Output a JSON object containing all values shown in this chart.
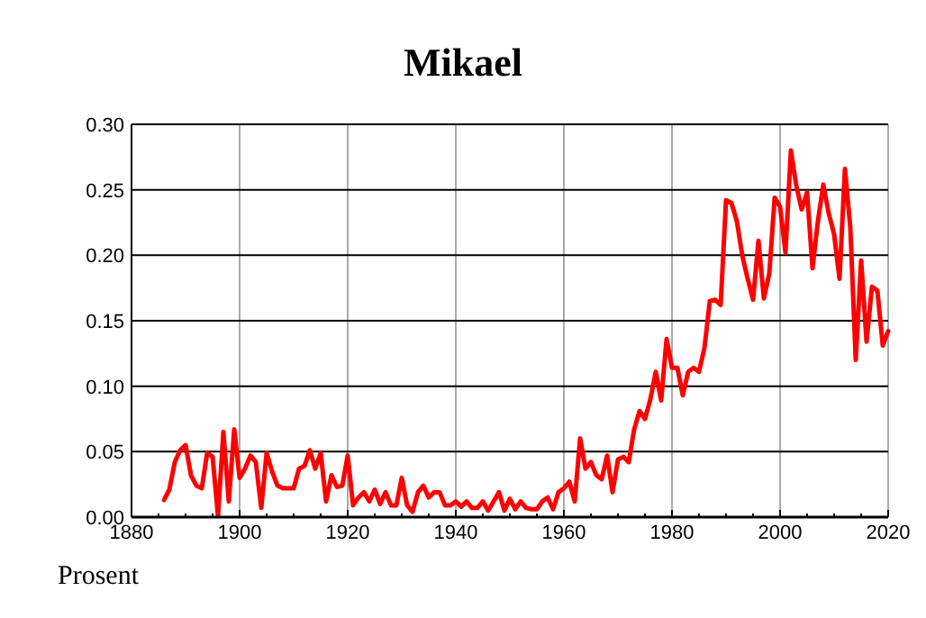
{
  "chart_data": {
    "type": "line",
    "title": "Mikael",
    "annotations": [
      "Prosent"
    ],
    "x": [
      1886,
      1887,
      1888,
      1889,
      1890,
      1891,
      1892,
      1893,
      1894,
      1895,
      1896,
      1897,
      1898,
      1899,
      1900,
      1901,
      1902,
      1903,
      1904,
      1905,
      1906,
      1907,
      1908,
      1909,
      1910,
      1911,
      1912,
      1913,
      1914,
      1915,
      1916,
      1917,
      1918,
      1919,
      1920,
      1921,
      1922,
      1923,
      1924,
      1925,
      1926,
      1927,
      1928,
      1929,
      1930,
      1931,
      1932,
      1933,
      1934,
      1935,
      1936,
      1937,
      1938,
      1939,
      1940,
      1941,
      1942,
      1943,
      1944,
      1945,
      1946,
      1947,
      1948,
      1949,
      1950,
      1951,
      1952,
      1953,
      1954,
      1955,
      1956,
      1957,
      1958,
      1959,
      1960,
      1961,
      1962,
      1963,
      1964,
      1965,
      1966,
      1967,
      1968,
      1969,
      1970,
      1971,
      1972,
      1973,
      1974,
      1975,
      1976,
      1977,
      1978,
      1979,
      1980,
      1981,
      1982,
      1983,
      1984,
      1985,
      1986,
      1987,
      1988,
      1989,
      1990,
      1991,
      1992,
      1993,
      1994,
      1995,
      1996,
      1997,
      1998,
      1999,
      2000,
      2001,
      2002,
      2003,
      2004,
      2005,
      2006,
      2007,
      2008,
      2009,
      2010,
      2011,
      2012,
      2013,
      2014,
      2015,
      2016,
      2017,
      2018,
      2019,
      2020
    ],
    "series": [
      {
        "color": "#ff0000",
        "values": [
          0.013,
          0.021,
          0.042,
          0.051,
          0.055,
          0.032,
          0.024,
          0.022,
          0.049,
          0.046,
          0.001,
          0.065,
          0.012,
          0.067,
          0.03,
          0.037,
          0.047,
          0.042,
          0.007,
          0.049,
          0.035,
          0.024,
          0.022,
          0.022,
          0.022,
          0.037,
          0.039,
          0.051,
          0.037,
          0.049,
          0.012,
          0.032,
          0.023,
          0.024,
          0.047,
          0.009,
          0.015,
          0.019,
          0.012,
          0.021,
          0.01,
          0.019,
          0.009,
          0.009,
          0.03,
          0.009,
          0.004,
          0.019,
          0.024,
          0.015,
          0.019,
          0.019,
          0.009,
          0.009,
          0.012,
          0.008,
          0.012,
          0.007,
          0.007,
          0.012,
          0.005,
          0.012,
          0.019,
          0.005,
          0.014,
          0.006,
          0.012,
          0.007,
          0.006,
          0.006,
          0.012,
          0.015,
          0.006,
          0.019,
          0.022,
          0.027,
          0.012,
          0.06,
          0.037,
          0.042,
          0.032,
          0.029,
          0.047,
          0.019,
          0.044,
          0.046,
          0.042,
          0.067,
          0.081,
          0.075,
          0.09,
          0.111,
          0.089,
          0.136,
          0.114,
          0.114,
          0.093,
          0.111,
          0.114,
          0.111,
          0.129,
          0.165,
          0.166,
          0.162,
          0.242,
          0.24,
          0.226,
          0.2,
          0.182,
          0.166,
          0.211,
          0.167,
          0.186,
          0.244,
          0.237,
          0.202,
          0.28,
          0.253,
          0.235,
          0.248,
          0.19,
          0.226,
          0.254,
          0.232,
          0.216,
          0.182,
          0.266,
          0.221,
          0.12,
          0.196,
          0.134,
          0.176,
          0.173,
          0.131,
          0.142
        ]
      }
    ],
    "xlim": [
      1880,
      2020
    ],
    "xticks": [
      1880,
      {
        "value": 1885,
        "label": null
      },
      {
        "value": 1890,
        "label": null
      },
      {
        "value": 1895,
        "label": null
      },
      1900,
      {
        "value": 1905,
        "label": null
      },
      {
        "value": 1910,
        "label": null
      },
      {
        "value": 1915,
        "label": null
      },
      1920,
      {
        "value": 1925,
        "label": null
      },
      {
        "value": 1930,
        "label": null
      },
      {
        "value": 1935,
        "label": null
      },
      1940,
      {
        "value": 1945,
        "label": null
      },
      {
        "value": 1950,
        "label": null
      },
      {
        "value": 1955,
        "label": null
      },
      1960,
      {
        "value": 1965,
        "label": null
      },
      {
        "value": 1970,
        "label": null
      },
      {
        "value": 1975,
        "label": null
      },
      1980,
      {
        "value": 1985,
        "label": null
      },
      {
        "value": 1990,
        "label": null
      },
      {
        "value": 1995,
        "label": null
      },
      2000,
      {
        "value": 2005,
        "label": null
      },
      {
        "value": 2010,
        "label": null
      },
      {
        "value": 2015,
        "label": null
      },
      2020
    ],
    "ylim": [
      0,
      0.3
    ],
    "yticks": [
      {
        "value": 0,
        "label": "0.00"
      },
      {
        "value": 0.05,
        "label": "0.05"
      },
      {
        "value": 0.1,
        "label": "0.10"
      },
      {
        "value": 0.15,
        "label": "0.15"
      },
      {
        "value": 0.2,
        "label": "0.20"
      },
      {
        "value": 0.25,
        "label": "0.25"
      },
      {
        "value": 0.3,
        "label": "0.30"
      }
    ],
    "grid": true,
    "marker": "none",
    "line_style": "solid"
  }
}
